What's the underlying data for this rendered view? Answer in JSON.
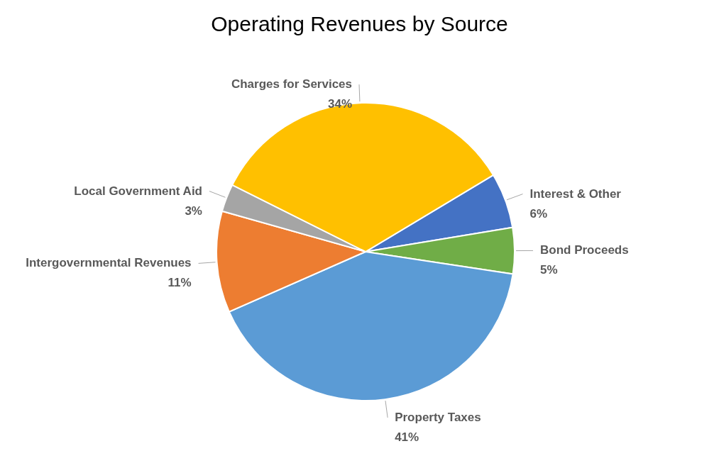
{
  "chart_data": {
    "type": "pie",
    "title": "Operating Revenues by Source",
    "categories": [
      "Interest & Other",
      "Bond Proceeds",
      "Property Taxes",
      "Intergovernmental Revenues",
      "Local Government Aid",
      "Charges for Services"
    ],
    "values": [
      6,
      5,
      41,
      11,
      3,
      34
    ],
    "value_labels": [
      "6%",
      "5%",
      "41%",
      "11%",
      "3%",
      "34%"
    ],
    "colors": [
      "#4472c4",
      "#70ad47",
      "#5b9bd5",
      "#ed7d31",
      "#a5a5a5",
      "#ffc000"
    ],
    "legend": false
  }
}
